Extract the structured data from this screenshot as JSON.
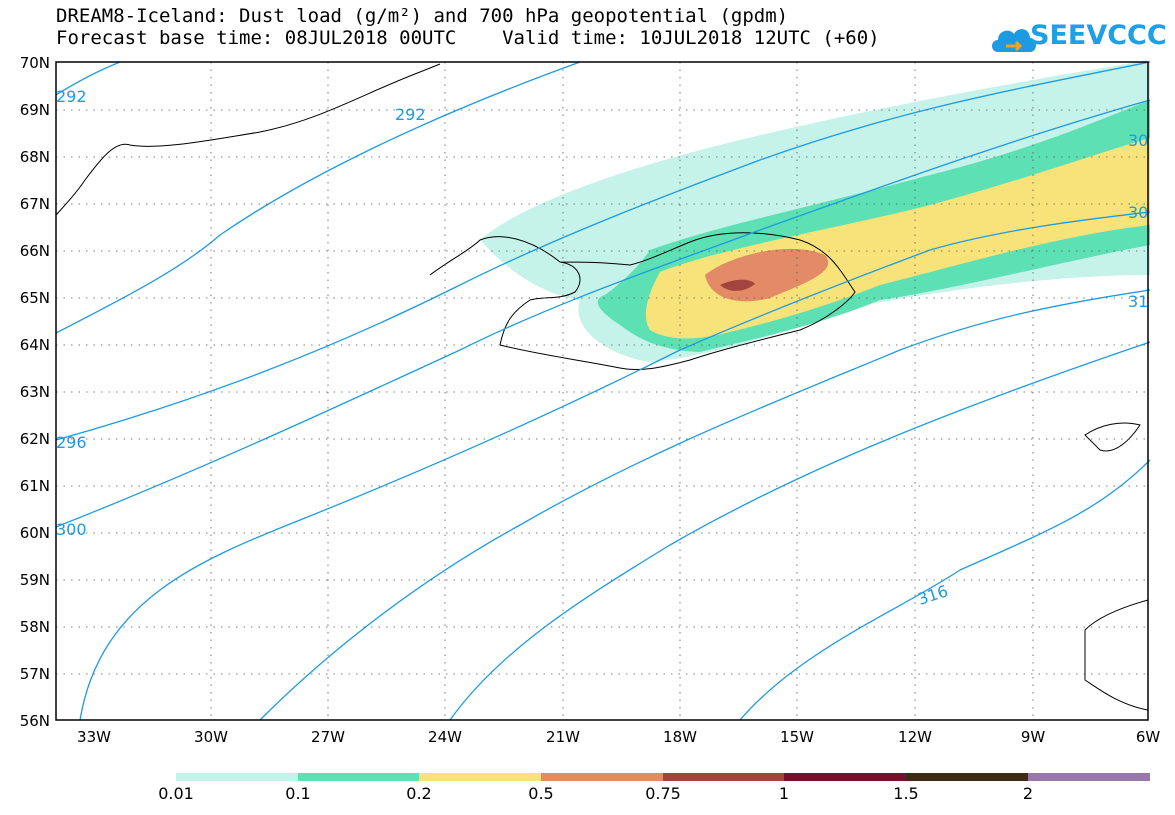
{
  "title_line1": "DREAM8-Iceland: Dust load (g/m²) and 700 hPa geopotential (gpdm)",
  "title_line2": "Forecast base time: 08JUL2018 00UTC    Valid time: 10JUL2018 12UTC (+60)",
  "logo": {
    "text": "SEEVCCC",
    "icon": "cloud-logo-icon",
    "color": "#1e9be0"
  },
  "map": {
    "lat_labels": [
      "70N",
      "69N",
      "68N",
      "67N",
      "66N",
      "65N",
      "64N",
      "63N",
      "62N",
      "61N",
      "60N",
      "59N",
      "58N",
      "57N",
      "56N"
    ],
    "lon_labels": [
      "33W",
      "30W",
      "27W",
      "24W",
      "21W",
      "18W",
      "15W",
      "12W",
      "9W",
      "6W"
    ],
    "contour_labels": [
      "292",
      "292",
      "296",
      "300",
      "316",
      "31",
      "30",
      "30"
    ],
    "contour_color": "#1e9be0"
  },
  "colorbar": {
    "labels": [
      "0.01",
      "0.1",
      "0.2",
      "0.5",
      "0.75",
      "1",
      "1.5",
      "2"
    ],
    "colors": [
      "#c5f2e9",
      "#5ce0b4",
      "#f7e37a",
      "#e38b67",
      "#a4443e",
      "#7a0f2c",
      "#3f2a16",
      "#9a77aa"
    ]
  },
  "dust_colors": {
    "very_light": "#c5f2e9",
    "light": "#5ce0b4",
    "yellow": "#f7e37a",
    "orange": "#e38b67",
    "red": "#a4443e"
  }
}
